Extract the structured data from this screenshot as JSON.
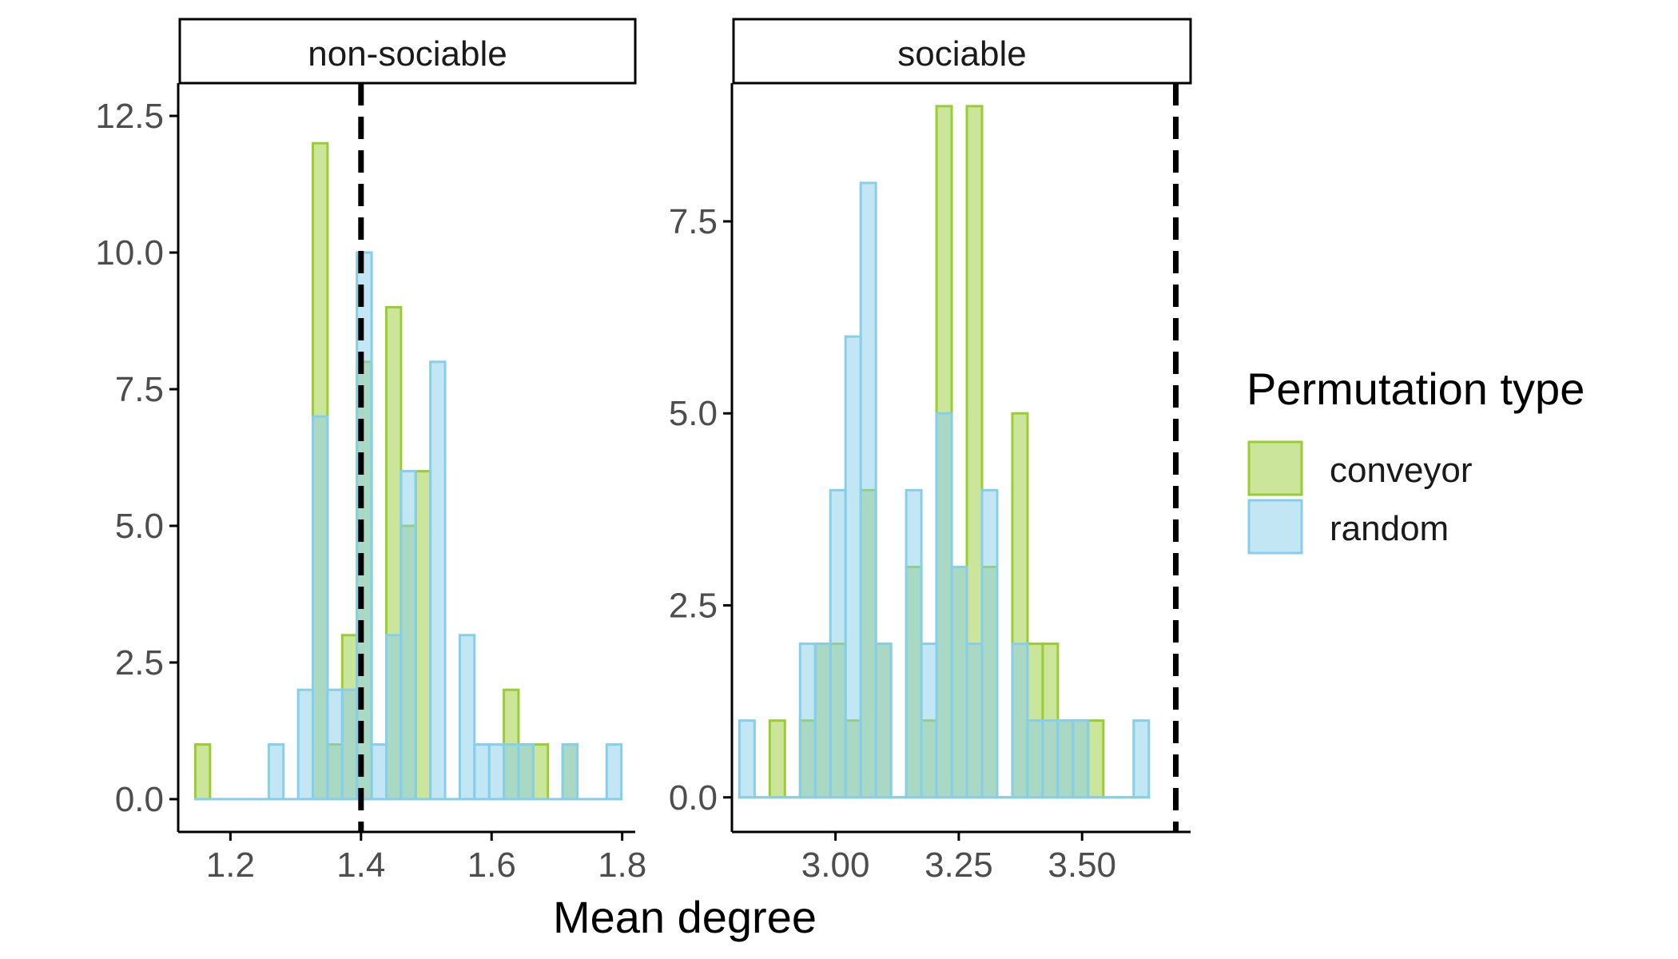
{
  "colors": {
    "conveyor_fill": "#CBE59A",
    "conveyor_stroke": "#9ACD32",
    "random_fill": "#87CEEB",
    "random_stroke": "#87CEEB",
    "reference_line": "#000000"
  },
  "chart_data": [
    {
      "type": "bar",
      "facet": "non-sociable",
      "xlabel": "Mean degree",
      "ylabel": "",
      "xlim": [
        1.12,
        1.82
      ],
      "ylim": [
        -0.6,
        13.1
      ],
      "x_ticks": [
        1.2,
        1.4,
        1.6,
        1.8
      ],
      "x_tick_labels": [
        "1.2",
        "1.4",
        "1.6",
        "1.8"
      ],
      "y_ticks": [
        0,
        2.5,
        5,
        7.5,
        10,
        12.5
      ],
      "y_tick_labels": [
        "0.0",
        "2.5",
        "5.0",
        "7.5",
        "10.0",
        "12.5"
      ],
      "bin_width": 0.0225,
      "bin_centers": [
        1.1575,
        1.18,
        1.2025,
        1.225,
        1.2475,
        1.27,
        1.2925,
        1.315,
        1.3375,
        1.36,
        1.3825,
        1.405,
        1.4275,
        1.45,
        1.4725,
        1.495,
        1.5175,
        1.54,
        1.5625,
        1.585,
        1.6075,
        1.63,
        1.6525,
        1.675,
        1.6975,
        1.72,
        1.7425,
        1.765,
        1.7875
      ],
      "series": [
        {
          "name": "conveyor",
          "values": [
            1,
            0,
            0,
            0,
            0,
            0,
            0,
            0,
            12,
            1,
            3,
            8,
            0,
            9,
            5,
            6,
            0,
            0,
            0,
            0,
            0,
            2,
            1,
            1,
            0,
            1,
            0,
            0,
            0
          ]
        },
        {
          "name": "random",
          "values": [
            0,
            0,
            0,
            0,
            0,
            1,
            0,
            2,
            7,
            2,
            2,
            10,
            1,
            3,
            6,
            0,
            8,
            0,
            3,
            1,
            1,
            1,
            1,
            0,
            0,
            1,
            0,
            0,
            1
          ]
        }
      ],
      "reference_line_x": 1.4
    },
    {
      "type": "bar",
      "facet": "sociable",
      "xlabel": "Mean degree",
      "ylabel": "",
      "xlim": [
        2.79,
        3.72
      ],
      "ylim": [
        -0.45,
        9.3
      ],
      "x_ticks": [
        3.0,
        3.25,
        3.5
      ],
      "x_tick_labels": [
        "3.00",
        "3.25",
        "3.50"
      ],
      "y_ticks": [
        0,
        2.5,
        5,
        7.5
      ],
      "y_tick_labels": [
        "0.0",
        "2.5",
        "5.0",
        "7.5"
      ],
      "bin_width": 0.03075,
      "bin_centers": [
        2.8205,
        2.85125,
        2.882,
        2.91275,
        2.9435,
        2.97425,
        3.005,
        3.03575,
        3.0665,
        3.09725,
        3.128,
        3.15875,
        3.1895,
        3.22025,
        3.251,
        3.28175,
        3.3125,
        3.34325,
        3.374,
        3.40475,
        3.4355,
        3.46625,
        3.497,
        3.52775,
        3.5585,
        3.58925,
        3.62
      ],
      "series": [
        {
          "name": "conveyor",
          "values": [
            0,
            0,
            1,
            0,
            1,
            2,
            2,
            1,
            4,
            2,
            0,
            3,
            1,
            9,
            3,
            9,
            3,
            0,
            5,
            2,
            2,
            1,
            1,
            1,
            0,
            0,
            0
          ]
        },
        {
          "name": "random",
          "values": [
            1,
            0,
            0,
            0,
            2,
            2,
            4,
            6,
            8,
            2,
            0,
            4,
            2,
            5,
            3,
            2,
            4,
            0,
            2,
            1,
            1,
            1,
            1,
            0,
            0,
            0,
            1
          ]
        }
      ],
      "reference_line_x": 3.69
    }
  ],
  "axis_title": "Mean degree",
  "legend": {
    "title": "Permutation type",
    "items": [
      {
        "key": "conveyor",
        "label": "conveyor"
      },
      {
        "key": "random",
        "label": "random"
      }
    ]
  }
}
